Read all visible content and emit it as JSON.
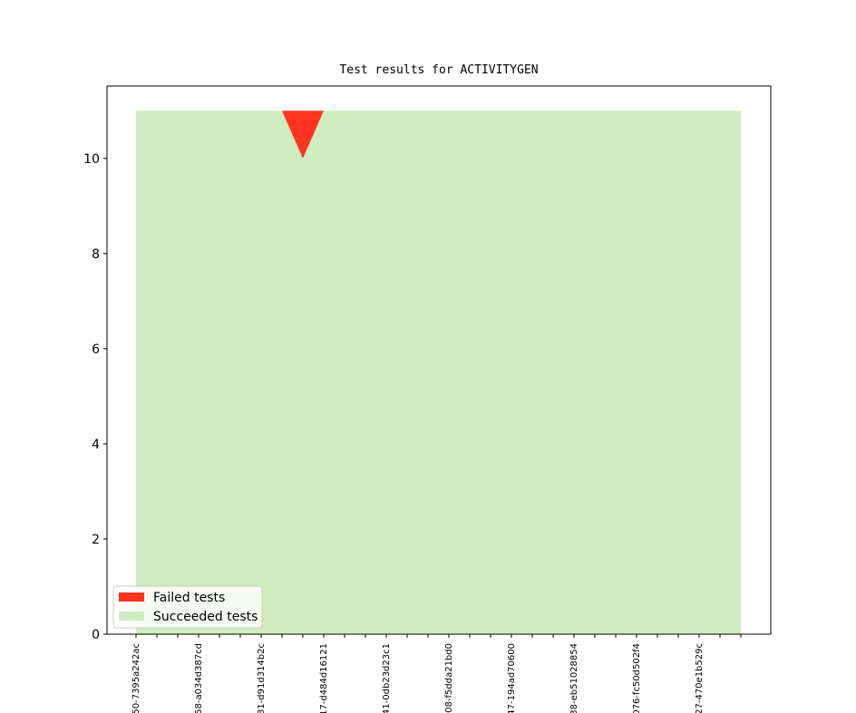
{
  "chart_data": {
    "type": "stacked_area",
    "title": "Test results for ACTIVITYGEN",
    "categories": [
      "50-7395a242ac",
      null,
      null,
      "58-a034d387cd",
      null,
      null,
      "81-d91d314b2c",
      null,
      null,
      "17-d484d16121",
      null,
      null,
      "41-0db23d23c1",
      null,
      null,
      "08-f5dda21bd0",
      null,
      null,
      "47-194ad70600",
      null,
      null,
      "38-eb51028854",
      null,
      null,
      "076-fc50d502f4",
      null,
      null,
      "27-470e1b529c",
      null,
      null
    ],
    "series": [
      {
        "name": "Failed tests",
        "color": "#fe3421",
        "values": [
          0,
          0,
          0,
          0,
          0,
          0,
          0,
          0,
          1,
          0,
          0,
          0,
          0,
          0,
          0,
          0,
          0,
          0,
          0,
          0,
          0,
          0,
          0,
          0,
          0,
          0,
          0,
          0,
          0,
          0
        ]
      },
      {
        "name": "Succeeded tests",
        "color": "#cfedbf",
        "values": [
          11,
          11,
          11,
          11,
          11,
          11,
          11,
          11,
          10,
          11,
          11,
          11,
          11,
          11,
          11,
          11,
          11,
          11,
          11,
          11,
          11,
          11,
          11,
          11,
          11,
          11,
          11,
          11,
          11,
          11
        ]
      }
    ],
    "stack_order": [
      "Succeeded tests",
      "Failed tests"
    ],
    "ylim": [
      0,
      11.52
    ],
    "yticks": [
      0,
      2,
      4,
      6,
      8,
      10
    ],
    "legend": "lower left"
  }
}
